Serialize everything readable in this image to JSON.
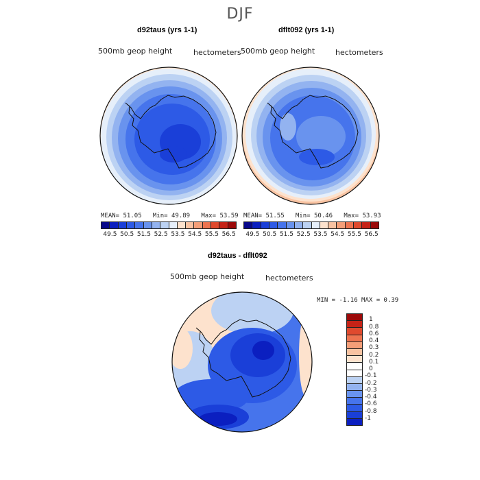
{
  "figure": {
    "season": "DJF"
  },
  "panels": [
    {
      "title": "d92taus (yrs 1-1)",
      "variable": "500mb geop height",
      "units": "hectometers",
      "mean_label": "MEAN=",
      "mean": "51.05",
      "min_label": "Min=",
      "min": "49.89",
      "max_label": "Max=",
      "max": "53.59"
    },
    {
      "title": "dflt092 (yrs 1-1)",
      "variable": "500mb geop height",
      "units": "hectometers",
      "mean_label": "MEAN=",
      "mean": "51.55",
      "min_label": "Min=",
      "min": "50.46",
      "max_label": "Max=",
      "max": "53.93"
    }
  ],
  "diff": {
    "title": "d92taus - dflt092",
    "variable": "500mb geop height",
    "units": "hectometers",
    "min_label": "MIN =",
    "min": "-1.16",
    "max_label": "MAX =",
    "max": "0.39"
  },
  "colorbar_top": {
    "labels": [
      "49.5",
      "50.5",
      "51.5",
      "52.5",
      "53.5",
      "54.5",
      "55.5",
      "56.5"
    ],
    "colors": [
      "#08088a",
      "#0b1fc0",
      "#1a3fd8",
      "#2d5ae6",
      "#4674ec",
      "#6993ee",
      "#93b3f0",
      "#bcd2f3",
      "#e6effa",
      "#fde2cd",
      "#f9c3a2",
      "#f49e78",
      "#ee7450",
      "#e04a2e",
      "#c62317",
      "#9c0a0a"
    ]
  },
  "colorbar_diff": {
    "labels": [
      "1",
      "0.8",
      "0.6",
      "0.4",
      "0.3",
      "0.2",
      "0.1",
      "0",
      "-0.1",
      "-0.2",
      "-0.3",
      "-0.4",
      "-0.6",
      "-0.8",
      "-1"
    ],
    "colors": [
      "#9c0a0a",
      "#c62317",
      "#e04a2e",
      "#ee7450",
      "#f49e78",
      "#f9c3a2",
      "#fde2cd",
      "#ffffff",
      "#ffffff",
      "#bcd2f3",
      "#93b3f0",
      "#6993ee",
      "#4674ec",
      "#2d5ae6",
      "#1a3fd8",
      "#0b1fc0"
    ]
  }
}
